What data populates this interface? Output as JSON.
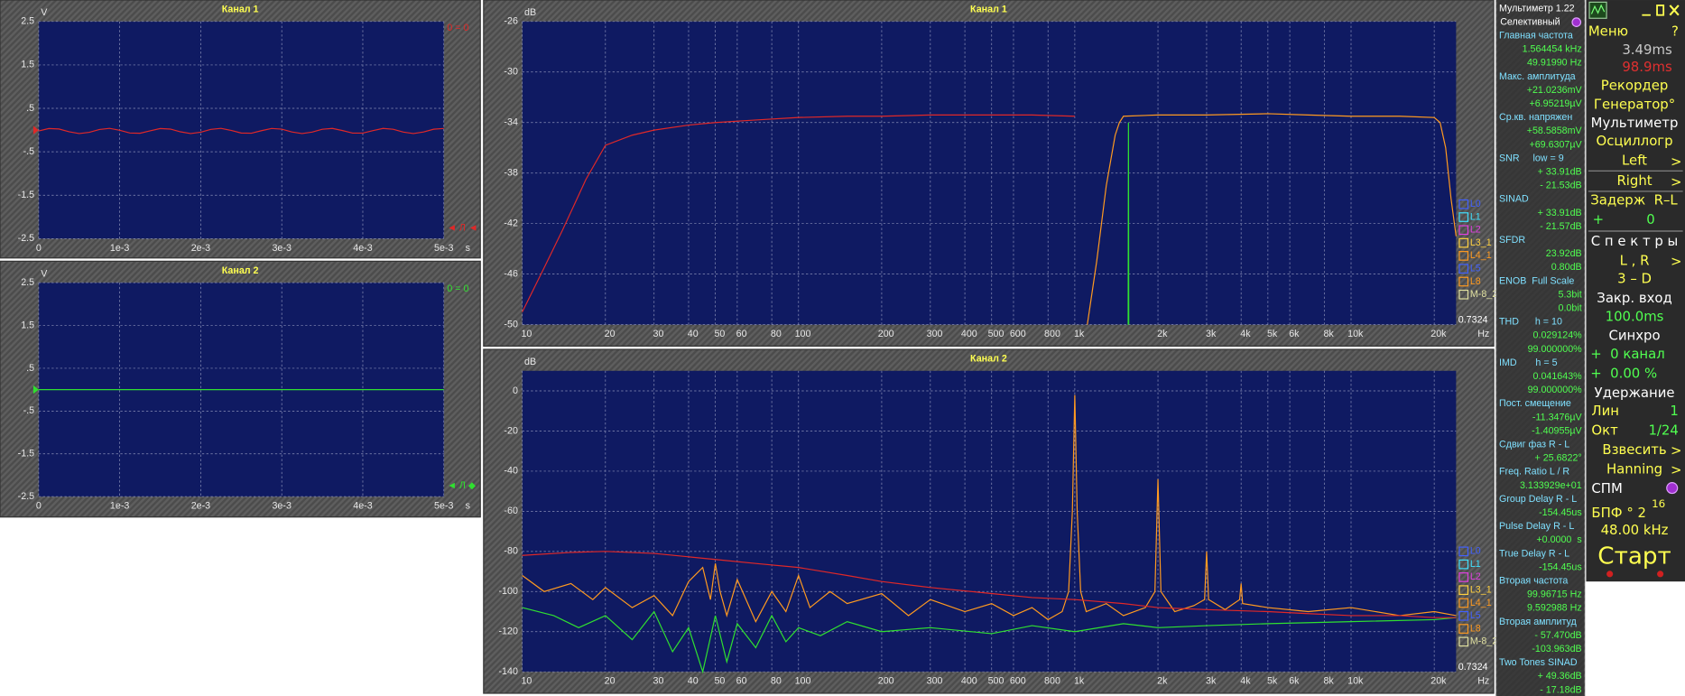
{
  "chart_data": [
    {
      "type": "line",
      "title": "Канал 1",
      "y_label": "V",
      "x_label": "s",
      "x": [
        0,
        0.000125,
        0.00025,
        0.000375,
        0.0005,
        0.000625,
        0.00075,
        0.000875,
        0.001,
        0.001125,
        0.00125,
        0.001375,
        0.0015,
        0.001625,
        0.00175,
        0.001875,
        0.002,
        0.002125,
        0.00225,
        0.002375,
        0.0025,
        0.002625,
        0.00275,
        0.002875,
        0.003,
        0.003125,
        0.00325,
        0.003375,
        0.0035,
        0.003625,
        0.00375,
        0.003875,
        0.004,
        0.004125,
        0.00425,
        0.004375,
        0.0045,
        0.004625,
        0.00475,
        0.004875,
        0.005
      ],
      "series": [
        {
          "color": "#e02828",
          "values": [
            -0.02,
            0.035,
            0.025,
            -0.038,
            -0.08,
            -0.052,
            0.014,
            0.039,
            -0.005,
            -0.067,
            -0.073,
            -0.017,
            0.036,
            0.023,
            -0.04,
            -0.08,
            -0.049,
            0.016,
            0.039,
            -0.008,
            -0.068,
            -0.072,
            -0.014,
            0.037,
            0.021,
            -0.043,
            -0.08,
            -0.047,
            0.018,
            0.038,
            -0.011,
            -0.07,
            -0.07,
            -0.012,
            0.038,
            0.019,
            -0.046,
            -0.08,
            -0.044,
            0.02,
            0.037
          ]
        }
      ],
      "xlim": [
        0,
        0.005
      ],
      "ylim": [
        -2.5,
        2.5
      ],
      "xticks": [
        0,
        {
          "value": 0.001,
          "label": "1e-3"
        },
        {
          "value": 0.002,
          "label": "2e-3"
        },
        {
          "value": 0.003,
          "label": "3e-3"
        },
        {
          "value": 0.004,
          "label": "4e-3"
        },
        {
          "value": 0.005,
          "label": "5e-3"
        }
      ],
      "yticks": [
        2.5,
        1.5,
        {
          "value": 0.5,
          "label": ".5"
        },
        {
          "value": -0.5,
          "label": "-.5"
        },
        -1.5,
        -2.5
      ],
      "grid": true,
      "side_labels": [
        "0 = 0",
        "◄ Л ◄"
      ]
    },
    {
      "type": "line",
      "title": "Канал 2",
      "y_label": "V",
      "x_label": "s",
      "x": [
        0,
        0.005
      ],
      "series": [
        {
          "color": "#30e030",
          "values": [
            0,
            0
          ]
        }
      ],
      "xlim": [
        0,
        0.005
      ],
      "ylim": [
        -2.5,
        2.5
      ],
      "xticks": [
        0,
        {
          "value": 0.001,
          "label": "1e-3"
        },
        {
          "value": 0.002,
          "label": "2e-3"
        },
        {
          "value": 0.003,
          "label": "3e-3"
        },
        {
          "value": 0.004,
          "label": "4e-3"
        },
        {
          "value": 0.005,
          "label": "5e-3"
        }
      ],
      "yticks": [
        2.5,
        1.5,
        {
          "value": 0.5,
          "label": ".5"
        },
        {
          "value": -0.5,
          "label": "-.5"
        },
        -1.5,
        -2.5
      ],
      "grid": true,
      "side_labels": [
        "0 = 0",
        "◄ Л ◆"
      ]
    },
    {
      "type": "line",
      "title": "Канал 1",
      "y_label": "dB",
      "x_label": "Hz",
      "xscale": "log",
      "series": [
        {
          "color": "#e02828",
          "x": [
            10,
            12,
            14,
            17,
            20,
            25,
            30,
            40,
            50,
            70,
            100,
            150,
            200,
            300,
            500,
            700,
            1000
          ],
          "values": [
            -49,
            -45.5,
            -42.5,
            -38.5,
            -35.8,
            -35,
            -34.6,
            -34.2,
            -34,
            -33.8,
            -33.6,
            -33.5,
            -33.5,
            -33.4,
            -33.4,
            -33.4,
            -33.5
          ]
        },
        {
          "color": "#ff9a20",
          "x": [
            1110,
            1200,
            1300,
            1400,
            1450,
            1500,
            2000,
            3000,
            5000,
            7000,
            10000,
            15000,
            20000,
            21000,
            22000,
            23000,
            24000
          ],
          "values": [
            -50,
            -45,
            -39,
            -35,
            -34,
            -33.5,
            -33.4,
            -33.4,
            -33.3,
            -33.4,
            -33.5,
            -33.5,
            -33.6,
            -34,
            -36,
            -40,
            -43
          ]
        },
        {
          "color": "#30e030",
          "x": [
            1560,
            1564,
            1568
          ],
          "values": [
            -50,
            -34,
            -50
          ]
        }
      ],
      "xlim": [
        10,
        24000
      ],
      "ylim": [
        -50,
        -26
      ],
      "xticks": [
        10,
        20,
        30,
        40,
        50,
        60,
        80,
        100,
        200,
        300,
        400,
        500,
        600,
        800,
        {
          "value": 1000,
          "label": "1k"
        },
        {
          "value": 2000,
          "label": "2k"
        },
        {
          "value": 3000,
          "label": "3k"
        },
        {
          "value": 4000,
          "label": "4k"
        },
        {
          "value": 5000,
          "label": "5k"
        },
        {
          "value": 6000,
          "label": "6k"
        },
        {
          "value": 8000,
          "label": "8k"
        },
        {
          "value": 10000,
          "label": "10k"
        },
        {
          "value": 20000,
          "label": "20k"
        }
      ],
      "yticks": [
        -26,
        -30,
        -34,
        -38,
        -42,
        -46,
        -50
      ],
      "grid": true,
      "resolution": 0.7324,
      "legend": [
        {
          "label": "L0",
          "color": "#4060ff"
        },
        {
          "label": "L1",
          "color": "#40e0ff"
        },
        {
          "label": "L2",
          "color": "#e040e0"
        },
        {
          "label": "L3_1",
          "color": "#ffd040"
        },
        {
          "label": "L4_1",
          "color": "#ff9a20"
        },
        {
          "label": "L5",
          "color": "#4060ff"
        },
        {
          "label": "L8",
          "color": "#ff9a20"
        },
        {
          "label": "M-8_2",
          "color": "#e0e0a0"
        }
      ]
    },
    {
      "type": "line",
      "title": "Канал 2",
      "y_label": "dB",
      "x_label": "Hz",
      "xscale": "log",
      "series": [
        {
          "color": "#ff9a20",
          "x": [
            10,
            12,
            15,
            18,
            20,
            25,
            30,
            35,
            40,
            45,
            48,
            50,
            52,
            55,
            60,
            70,
            80,
            90,
            100,
            110,
            130,
            150,
            200,
            250,
            300,
            400,
            500,
            600,
            700,
            800,
            900,
            950,
            980,
            1000,
            1020,
            1050,
            1100,
            1300,
            1500,
            1800,
            1950,
            2000,
            2050,
            2300,
            2700,
            2950,
            3000,
            3050,
            3500,
            3950,
            4000,
            4050,
            5000,
            7000,
            10000,
            15000,
            20000,
            24000
          ],
          "values": [
            -92,
            -100,
            -96,
            -104,
            -98,
            -108,
            -102,
            -112,
            -95,
            -88,
            -104,
            -86,
            -100,
            -112,
            -94,
            -115,
            -100,
            -110,
            -92,
            -108,
            -100,
            -106,
            -101,
            -112,
            -104,
            -110,
            -106,
            -112,
            -108,
            -114,
            -110,
            -100,
            -60,
            -2,
            -60,
            -100,
            -110,
            -106,
            -112,
            -108,
            -100,
            -44,
            -100,
            -110,
            -107,
            -104,
            -80,
            -104,
            -109,
            -104,
            -96,
            -106,
            -108,
            -110,
            -108,
            -112,
            -110,
            -112
          ]
        },
        {
          "color": "#30e030",
          "x": [
            10,
            13,
            16,
            20,
            25,
            30,
            35,
            40,
            45,
            50,
            55,
            60,
            70,
            80,
            90,
            100,
            120,
            150,
            200,
            300,
            500,
            700,
            1000,
            1500,
            2000,
            3000,
            5000,
            10000,
            20000,
            24000
          ],
          "values": [
            -108,
            -112,
            -118,
            -112,
            -124,
            -110,
            -130,
            -118,
            -140,
            -112,
            -135,
            -116,
            -128,
            -112,
            -125,
            -118,
            -122,
            -115,
            -120,
            -118,
            -121,
            -117,
            -120,
            -116,
            -118,
            -117,
            -116,
            -115,
            -114,
            -113
          ]
        },
        {
          "color": "#e02828",
          "x": [
            10,
            15,
            20,
            30,
            50,
            70,
            100,
            150,
            200,
            300,
            500,
            700,
            1000,
            1500,
            2000,
            3000,
            5000,
            7000,
            10000,
            15000,
            20000,
            24000
          ],
          "values": [
            -82,
            -80.5,
            -80,
            -81,
            -84,
            -86,
            -88,
            -92,
            -95,
            -98,
            -101,
            -103,
            -104,
            -106,
            -108,
            -109,
            -110,
            -111,
            -112,
            -112,
            -113,
            -113
          ]
        }
      ],
      "xlim": [
        10,
        24000
      ],
      "ylim": [
        -140,
        10
      ],
      "xticks": [
        10,
        20,
        30,
        40,
        50,
        60,
        80,
        100,
        200,
        300,
        400,
        500,
        600,
        800,
        {
          "value": 1000,
          "label": "1k"
        },
        {
          "value": 2000,
          "label": "2k"
        },
        {
          "value": 3000,
          "label": "3k"
        },
        {
          "value": 4000,
          "label": "4k"
        },
        {
          "value": 5000,
          "label": "5k"
        },
        {
          "value": 6000,
          "label": "6k"
        },
        {
          "value": 8000,
          "label": "8k"
        },
        {
          "value": 10000,
          "label": "10k"
        },
        {
          "value": 20000,
          "label": "20k"
        }
      ],
      "yticks": [
        0,
        -20,
        -40,
        -60,
        -80,
        -100,
        -120,
        -140
      ],
      "grid": true,
      "resolution": 0.7324,
      "legend": [
        {
          "label": "L0",
          "color": "#4060ff"
        },
        {
          "label": "L1",
          "color": "#40e0ff"
        },
        {
          "label": "L2",
          "color": "#e040e0"
        },
        {
          "label": "L3_1",
          "color": "#ffd040"
        },
        {
          "label": "L4_1",
          "color": "#ff9a20"
        },
        {
          "label": "L5",
          "color": "#4060ff"
        },
        {
          "label": "L8",
          "color": "#ff9a20"
        },
        {
          "label": "M-8_2",
          "color": "#e0e0a0"
        }
      ]
    }
  ],
  "multimeter": {
    "title": "Мультиметр 1.22",
    "mode": "Селективный",
    "sections": [
      {
        "label": "Главная частота",
        "values": [
          "1.564454 kHz",
          "49.91990 Hz"
        ]
      },
      {
        "label": "Макс. амплитуда",
        "values": [
          "+21.0236mV",
          "+6.95219µV"
        ]
      },
      {
        "label": "Ср.кв. напряжен",
        "values": [
          "+58.5858mV",
          "+69.6307µV"
        ]
      },
      {
        "label": "SNR     low = 9",
        "values": [
          "+ 33.91dB",
          "- 21.53dB"
        ]
      },
      {
        "label": "SINAD",
        "values": [
          "+ 33.91dB",
          "- 21.57dB"
        ]
      },
      {
        "label": "SFDR",
        "values": [
          "23.92dB",
          "0.80dB"
        ]
      },
      {
        "label": "ENOB  Full Scale",
        "values": [
          "5.3bit",
          "0.0bit"
        ]
      },
      {
        "label": "THD      h = 10",
        "values": [
          "0.029124%",
          "99.000000%"
        ]
      },
      {
        "label": "IMD       h = 5",
        "values": [
          "0.041643%",
          "99.000000%"
        ]
      },
      {
        "label": "Пост. смещение",
        "values": [
          "-11.3476µV",
          "-1.40955µV"
        ]
      },
      {
        "label": "Сдвиг фаз R - L",
        "values": [
          "+ 25.6822°"
        ]
      },
      {
        "label": "Freq. Ratio L / R",
        "values": [
          "3.133929e+01"
        ]
      },
      {
        "label": "Group Delay R - L",
        "values": [
          "-154.45us"
        ]
      },
      {
        "label": "Pulse Delay R - L",
        "values": [
          "+0.0000  s"
        ]
      },
      {
        "label": "True Delay R - L",
        "values": [
          "-154.45us"
        ]
      },
      {
        "label": "Вторая частота",
        "values": [
          "99.96715 Hz",
          "9.592988 Hz"
        ]
      },
      {
        "label": "Вторая амплитуд",
        "values": [
          "- 57.470dB",
          "-103.963dB"
        ]
      },
      {
        "label": "Two Tones SINAD",
        "values": [
          "+ 49.36dB",
          "- 17.18dB"
        ]
      }
    ]
  },
  "menu": {
    "title": "Меню",
    "help": "?",
    "time1": "3.49ms",
    "time2": "98.9ms",
    "recorder": "Рекордер",
    "generator": "Генератор°",
    "multimeter": "Мультиметр",
    "oscillograph": "Осциллогр",
    "left": "Left",
    "right": "Right",
    "arrow": ">",
    "delay": "Задерж  R–L",
    "delay_sign": "+",
    "delay_value": "0",
    "spectra": "С п е к т р ы",
    "lr": "L , R",
    "three_d": "3 – D",
    "closed_input": "Закр. вход",
    "closed_value": "100.0ms",
    "sync": "Синхро",
    "sync_channel": "+  0 канал",
    "sync_percent": "+  0.00 %",
    "hold": "Удержание",
    "lin": "Лин",
    "lin_value": "1",
    "oct": "Окт",
    "oct_value": "1/24",
    "weight": "Взвесить",
    "window": "Hanning",
    "psd": "СПМ",
    "fft": "БПФ ° 2",
    "fft_exp": "16",
    "rate": "48.00 kHz",
    "start": "Старт"
  }
}
